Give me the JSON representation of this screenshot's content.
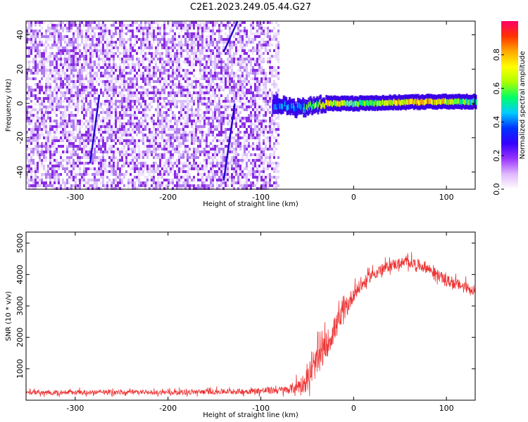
{
  "title": "C2E1.2023.249.05.44.G27",
  "chart_data": [
    {
      "type": "heatmap",
      "panel": "spectrogram",
      "xlabel": "Height of straight line (km)",
      "ylabel": "Frequency (Hz)",
      "xlim": [
        -353,
        131
      ],
      "ylim": [
        -50,
        48
      ],
      "xticks": [
        -300,
        -200,
        -100,
        0,
        100
      ],
      "yticks": [
        -40,
        -20,
        0,
        20,
        40
      ],
      "colorbar": {
        "label": "Normalized spectral amplitude",
        "range": [
          0,
          1
        ],
        "ticks": [
          "0.0",
          "0.2",
          "0.4",
          "0.6",
          "0.8"
        ],
        "colors": [
          "#ffffff",
          "#e0b8ff",
          "#9933ff",
          "#3300ff",
          "#0033ff",
          "#00ccff",
          "#00ff66",
          "#aaff00",
          "#ffff00",
          "#ffaa00",
          "#ff3300",
          "#ff0066"
        ]
      },
      "features": {
        "noise_region_x": [
          -353,
          -80
        ],
        "noise_level": 0.15,
        "signal_trace": [
          {
            "x": -88,
            "y": 0,
            "amplitude": 0.35
          },
          {
            "x": -60,
            "y": -3,
            "amplitude": 0.4
          },
          {
            "x": -30,
            "y": 0,
            "amplitude": 0.75
          },
          {
            "x": 0,
            "y": 0,
            "amplitude": 0.55
          },
          {
            "x": 80,
            "y": 1,
            "amplitude": 0.8
          },
          {
            "x": 131,
            "y": 1,
            "amplitude": 0.5
          }
        ],
        "streaks": [
          {
            "x1": -284,
            "y1": -35,
            "x2": -274,
            "y2": 5
          },
          {
            "x1": -140,
            "y1": -45,
            "x2": -128,
            "y2": 0
          },
          {
            "x1": -140,
            "y1": 30,
            "x2": -125,
            "y2": 48
          }
        ]
      }
    },
    {
      "type": "line",
      "panel": "snr",
      "xlabel": "Height of straight line (km)",
      "ylabel": "SNR (10 * v/v)",
      "xlim": [
        -353,
        131
      ],
      "ylim": [
        0,
        5350
      ],
      "xticks": [
        -300,
        -200,
        -100,
        0,
        100
      ],
      "yticks": [
        1000,
        2000,
        3000,
        4000,
        5000
      ],
      "color": "#ee3333",
      "envelope": {
        "x": [
          -353,
          -300,
          -200,
          -120,
          -70,
          -50,
          -40,
          -30,
          -20,
          -10,
          0,
          10,
          20,
          40,
          60,
          80,
          100,
          131
        ],
        "y": [
          250,
          250,
          250,
          280,
          330,
          600,
          1200,
          1700,
          2300,
          2800,
          3400,
          3700,
          4000,
          4300,
          4400,
          4200,
          3800,
          3500
        ],
        "spread": [
          150,
          150,
          150,
          180,
          250,
          700,
          900,
          900,
          800,
          700,
          500,
          400,
          350,
          350,
          350,
          350,
          350,
          350
        ]
      }
    }
  ]
}
